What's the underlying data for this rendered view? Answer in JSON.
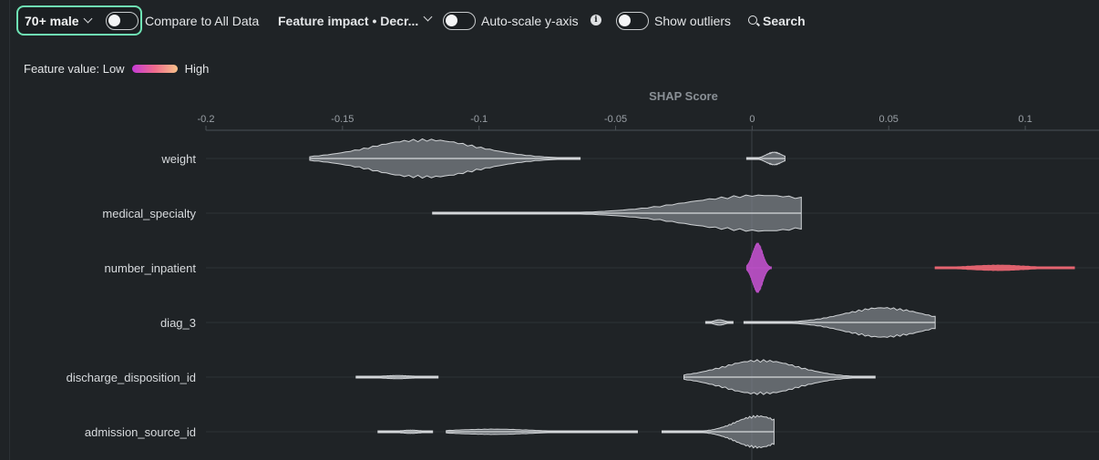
{
  "toolbar": {
    "cohort_label": "70+ male",
    "compare_label": "Compare to All Data",
    "sort_label": "Feature impact • Decr...",
    "autoscale_label": "Auto-scale y-axis",
    "outliers_label": "Show outliers",
    "search_label": "Search"
  },
  "legend": {
    "prefix": "Feature value: Low",
    "high": "High",
    "gradient_colors": [
      "#c43ad6",
      "#f06c8c",
      "#f7c28a"
    ]
  },
  "colors": {
    "accent": "#6fe3b4",
    "violin_fill": "#80868c",
    "violin_stroke": "#d0d3d6",
    "highlight_magenta": "#b84fc3",
    "highlight_red": "#e56470"
  },
  "chart_data": {
    "type": "violin",
    "xlabel": "SHAP Score",
    "xlim": [
      -0.2,
      0.127
    ],
    "ticks": [
      -0.2,
      -0.15,
      -0.1,
      -0.05,
      0,
      0.05,
      0.1
    ],
    "tick_labels": [
      "-0.2",
      "-0.15",
      "-0.1",
      "-0.05",
      "0",
      "0.05",
      "0.1"
    ],
    "features": [
      {
        "name": "weight",
        "segments": [
          {
            "range": [
              -0.162,
              -0.063
            ],
            "peak": -0.12,
            "max_half_height": 0.36
          },
          {
            "range": [
              -0.002,
              0.012
            ],
            "peak": 0.008,
            "max_half_height": 0.12
          }
        ]
      },
      {
        "name": "medical_specialty",
        "segments": [
          {
            "range": [
              -0.117,
              0.018
            ],
            "peak": 0.003,
            "max_half_height": 0.34
          }
        ]
      },
      {
        "name": "number_inpatient",
        "segments": [
          {
            "range": [
              -0.002,
              0.007
            ],
            "peak": 0.002,
            "max_half_height": 0.46,
            "color": "magenta"
          },
          {
            "range": [
              0.067,
              0.118
            ],
            "peak": 0.09,
            "max_half_height": 0.05,
            "color": "red"
          }
        ]
      },
      {
        "name": "diag_3",
        "segments": [
          {
            "range": [
              -0.017,
              -0.007
            ],
            "peak": -0.012,
            "max_half_height": 0.05
          },
          {
            "range": [
              -0.003,
              0.067
            ],
            "peak": 0.048,
            "max_half_height": 0.28
          }
        ]
      },
      {
        "name": "discharge_disposition_id",
        "segments": [
          {
            "range": [
              -0.145,
              -0.115
            ],
            "peak": -0.13,
            "max_half_height": 0.03
          },
          {
            "range": [
              -0.025,
              0.045
            ],
            "peak": 0.003,
            "max_half_height": 0.32
          }
        ]
      },
      {
        "name": "admission_source_id",
        "segments": [
          {
            "range": [
              -0.137,
              -0.117
            ],
            "peak": -0.125,
            "max_half_height": 0.03
          },
          {
            "range": [
              -0.112,
              -0.042
            ],
            "peak": -0.095,
            "max_half_height": 0.05
          },
          {
            "range": [
              -0.033,
              0.008
            ],
            "peak": 0.002,
            "max_half_height": 0.3
          }
        ]
      }
    ]
  }
}
